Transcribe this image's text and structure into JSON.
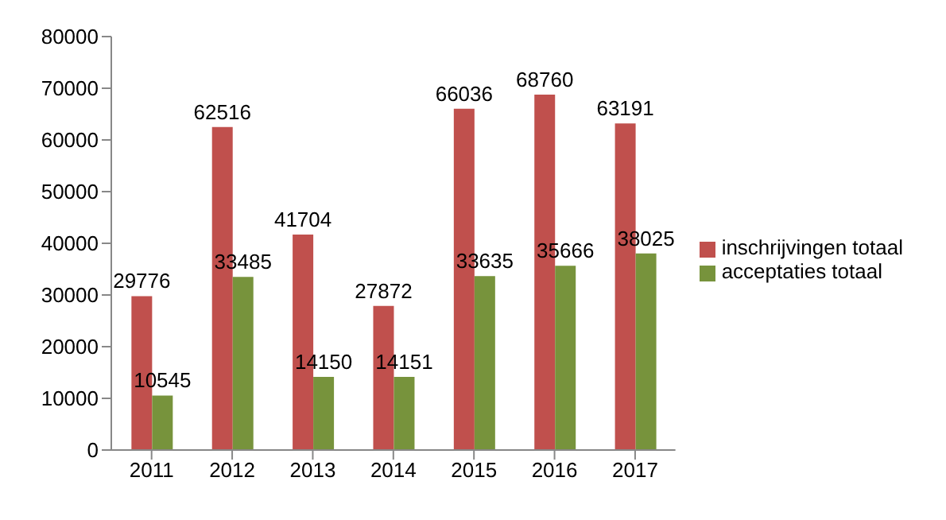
{
  "chart_data": {
    "type": "bar",
    "categories": [
      "2011",
      "2012",
      "2013",
      "2014",
      "2015",
      "2016",
      "2017"
    ],
    "series": [
      {
        "name": "inschrijvingen totaal",
        "color": "#c0504d",
        "values": [
          29776,
          62516,
          41704,
          27872,
          66036,
          68760,
          63191
        ]
      },
      {
        "name": "acceptaties totaal",
        "color": "#77933c",
        "values": [
          10545,
          33485,
          14150,
          14151,
          33635,
          35666,
          38025
        ]
      }
    ],
    "ylim": [
      0,
      80000
    ],
    "yticks": [
      0,
      10000,
      20000,
      30000,
      40000,
      50000,
      60000,
      70000,
      80000
    ],
    "grid": false,
    "legend": "right",
    "data_labels": true
  }
}
